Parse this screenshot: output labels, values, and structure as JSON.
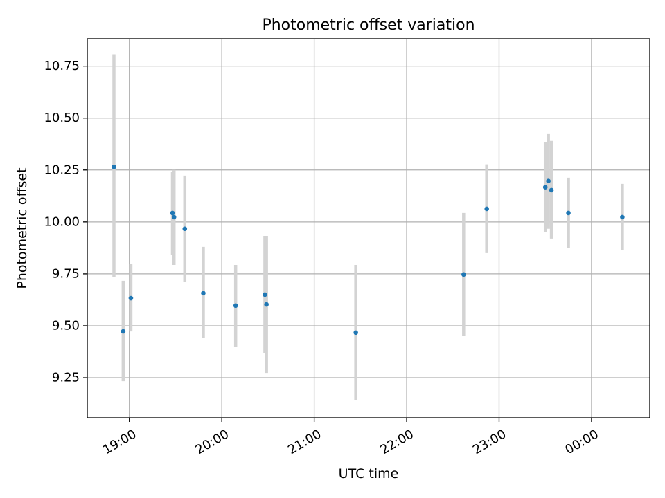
{
  "chart_data": {
    "type": "scatter",
    "title": "Photometric offset variation",
    "xlabel": "UTC time",
    "ylabel": "Photometric offset",
    "x_tick_labels": [
      "19:00",
      "20:00",
      "21:00",
      "22:00",
      "23:00",
      "00:00"
    ],
    "x_ticks_hours": [
      19,
      20,
      21,
      22,
      23,
      24
    ],
    "y_tick_labels": [
      "9.25",
      "9.50",
      "9.75",
      "10.00",
      "10.25",
      "10.50",
      "10.75"
    ],
    "y_ticks": [
      9.25,
      9.5,
      9.75,
      10.0,
      10.25,
      10.5,
      10.75
    ],
    "xlim_hours": [
      18.545,
      24.63
    ],
    "ylim": [
      9.057,
      10.882
    ],
    "grid": true,
    "marker_color": "#1f77b4",
    "errorbar_color": "#d3d3d3",
    "points": [
      {
        "time": "18:50",
        "y": 10.265,
        "ylow": 9.733,
        "yhigh": 10.807
      },
      {
        "time": "18:56",
        "y": 9.473,
        "ylow": 9.233,
        "yhigh": 9.717
      },
      {
        "time": "19:01",
        "y": 9.633,
        "ylow": 9.473,
        "yhigh": 9.797
      },
      {
        "time": "19:28",
        "y": 10.043,
        "ylow": 9.843,
        "yhigh": 10.24
      },
      {
        "time": "19:29",
        "y": 10.023,
        "ylow": 9.793,
        "yhigh": 10.25
      },
      {
        "time": "19:36",
        "y": 9.967,
        "ylow": 9.713,
        "yhigh": 10.223
      },
      {
        "time": "19:48",
        "y": 9.657,
        "ylow": 9.44,
        "yhigh": 9.88
      },
      {
        "time": "20:09",
        "y": 9.597,
        "ylow": 9.4,
        "yhigh": 9.793
      },
      {
        "time": "20:28",
        "y": 9.65,
        "ylow": 9.37,
        "yhigh": 9.933
      },
      {
        "time": "20:29",
        "y": 9.603,
        "ylow": 9.273,
        "yhigh": 9.933
      },
      {
        "time": "21:27",
        "y": 9.467,
        "ylow": 9.143,
        "yhigh": 9.793
      },
      {
        "time": "22:37",
        "y": 9.747,
        "ylow": 9.45,
        "yhigh": 10.043
      },
      {
        "time": "22:52",
        "y": 10.063,
        "ylow": 9.85,
        "yhigh": 10.277
      },
      {
        "time": "23:30",
        "y": 10.167,
        "ylow": 9.95,
        "yhigh": 10.383
      },
      {
        "time": "23:32",
        "y": 10.197,
        "ylow": 9.967,
        "yhigh": 10.423
      },
      {
        "time": "23:34",
        "y": 10.153,
        "ylow": 9.92,
        "yhigh": 10.39
      },
      {
        "time": "23:45",
        "y": 10.043,
        "ylow": 9.873,
        "yhigh": 10.213
      },
      {
        "time": "00:20",
        "y": 10.023,
        "ylow": 9.863,
        "yhigh": 10.183
      }
    ]
  }
}
